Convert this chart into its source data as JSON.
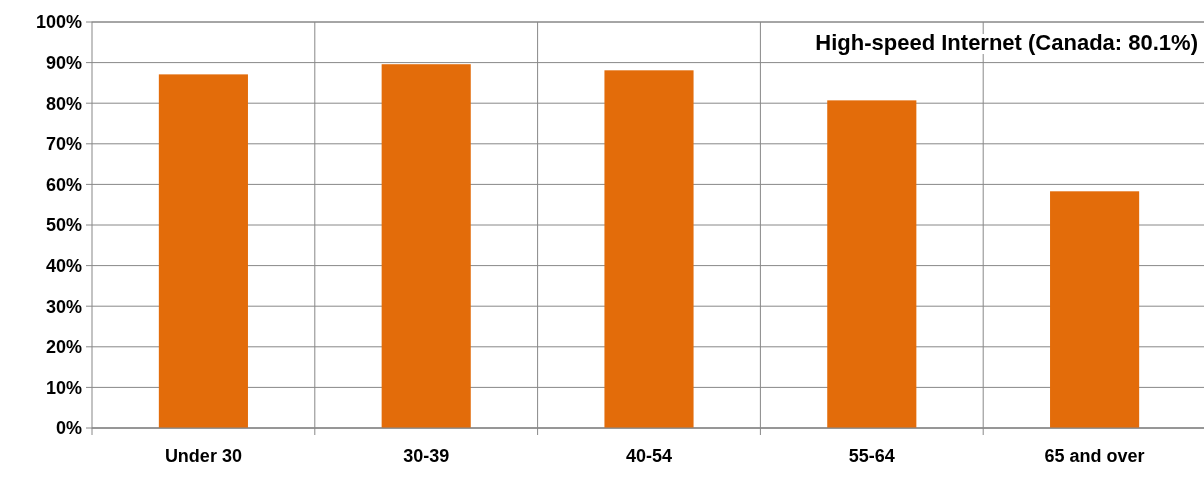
{
  "chart_data": {
    "type": "bar",
    "title": "High-speed Internet (Canada: 80.1%)",
    "categories": [
      "Under 30",
      "30-39",
      "40-54",
      "55-64",
      "65 and over"
    ],
    "values": [
      87.1,
      89.6,
      88.1,
      80.7,
      58.3
    ],
    "color": "#e36c0a",
    "ylim": [
      0,
      100
    ],
    "yticks": [
      {
        "value": 0,
        "label": "0%"
      },
      {
        "value": 10,
        "label": "10%"
      },
      {
        "value": 20,
        "label": "20%"
      },
      {
        "value": 30,
        "label": "30%"
      },
      {
        "value": 40,
        "label": "40%"
      },
      {
        "value": 50,
        "label": "50%"
      },
      {
        "value": 60,
        "label": "60%"
      },
      {
        "value": 70,
        "label": "70%"
      },
      {
        "value": 80,
        "label": "80%"
      },
      {
        "value": 90,
        "label": "90%"
      },
      {
        "value": 100,
        "label": "100%"
      }
    ],
    "grid": true
  }
}
